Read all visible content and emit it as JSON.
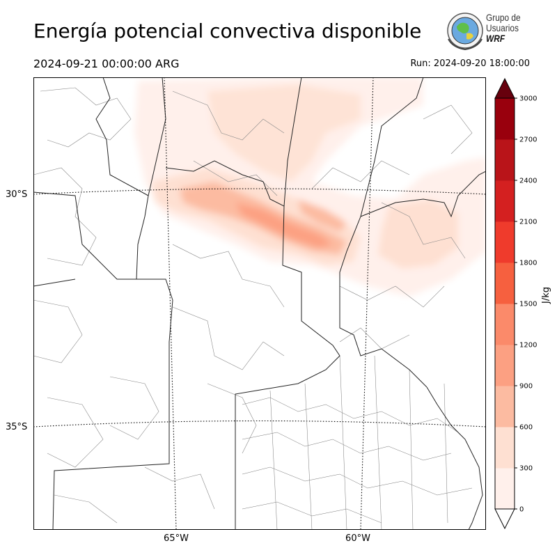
{
  "title": "Energía potencial convectiva disponible",
  "valid_time": "2024-09-21 00:00:00 ARG",
  "run_time": "Run: 2024-09-20 18:00:00",
  "logo": {
    "line1": "Grupo de",
    "line2": "Usuarios",
    "line3": "WRF"
  },
  "lat_labels": [
    "30°S",
    "35°S"
  ],
  "lon_labels": [
    "65°W",
    "60°W"
  ],
  "colorbar": {
    "unit": "J/kg",
    "ticks": [
      "0",
      "300",
      "600",
      "900",
      "1200",
      "1500",
      "1800",
      "2100",
      "2400",
      "2700",
      "3000"
    ],
    "colors": [
      "#fff0eb",
      "#fee0d2",
      "#fcbba1",
      "#fca082",
      "#fb8a6a",
      "#f6603f",
      "#ef3b2c",
      "#d42020",
      "#b91419",
      "#99000d"
    ],
    "extend": "both",
    "over_color": "#67000d",
    "under_color": "#ffffff"
  }
}
